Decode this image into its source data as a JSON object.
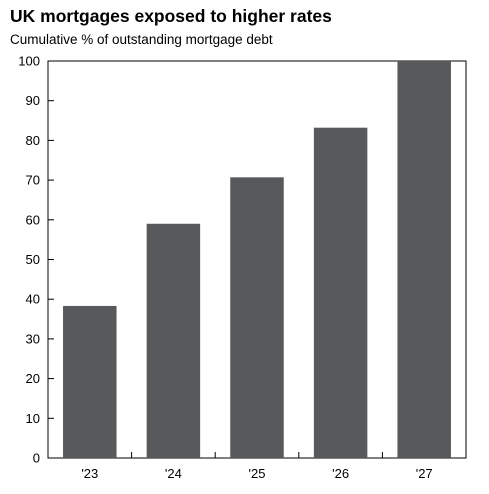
{
  "chart_data": {
    "type": "bar",
    "title": "UK mortgages exposed to higher rates",
    "subtitle": "Cumulative % of outstanding mortgage debt",
    "xlabel": "",
    "ylabel": "",
    "categories": [
      "'23",
      "'24",
      "'25",
      "'26",
      "'27"
    ],
    "values": [
      38.3,
      59,
      70.7,
      83.2,
      100
    ],
    "ylim": [
      0,
      100
    ],
    "yticks": [
      0,
      10,
      20,
      30,
      40,
      50,
      60,
      70,
      80,
      90,
      100
    ],
    "grid": false,
    "legend": "none",
    "colors": {
      "bar": "#58595b",
      "axis": "#000000"
    }
  }
}
